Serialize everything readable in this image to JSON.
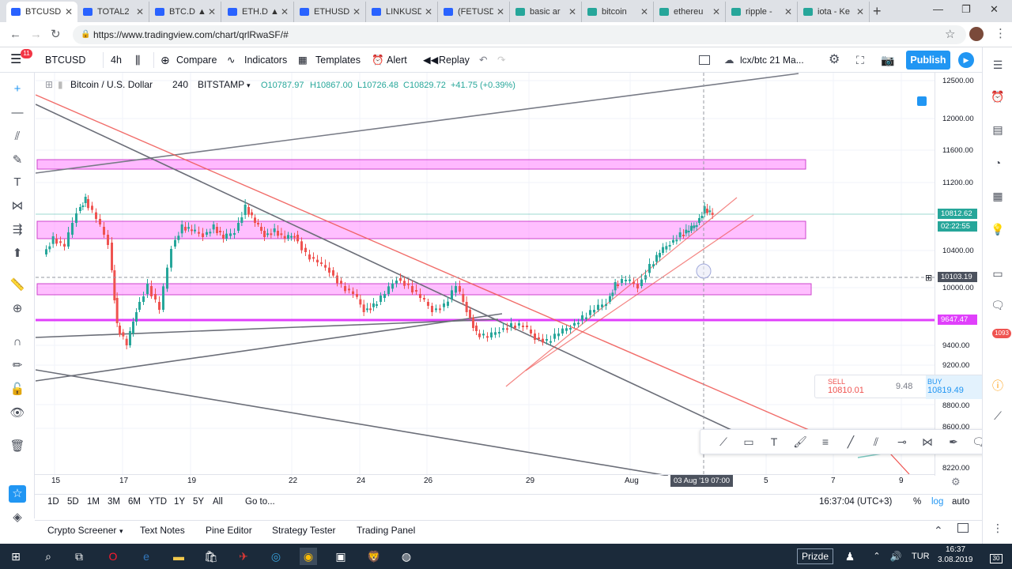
{
  "browser": {
    "tabs": [
      {
        "label": "BTCUSD",
        "color": "#2962ff"
      },
      {
        "label": "TOTAL2",
        "color": "#2962ff"
      },
      {
        "label": "BTC.D ▲",
        "color": "#2962ff"
      },
      {
        "label": "ETH.D ▲",
        "color": "#2962ff"
      },
      {
        "label": "ETHUSD",
        "color": "#2962ff"
      },
      {
        "label": "LINKUSD",
        "color": "#2962ff"
      },
      {
        "label": "(FETUSD",
        "color": "#2962ff"
      },
      {
        "label": "basic ar",
        "color": "#26a69a"
      },
      {
        "label": "bitcoin",
        "color": "#26a69a"
      },
      {
        "label": "ethereu",
        "color": "#26a69a"
      },
      {
        "label": "ripple -",
        "color": "#26a69a"
      },
      {
        "label": "iota - Ke",
        "color": "#26a69a"
      }
    ],
    "url": "https://www.tradingview.com/chart/qrlRwaSF/#"
  },
  "toolbar": {
    "symbol": "BTCUSD",
    "interval": "4h",
    "compare": "Compare",
    "indicators": "Indicators",
    "templates": "Templates",
    "alert": "Alert",
    "replay": "Replay",
    "layout_name": "lcx/btc 21 Ma...",
    "publish": "Publish",
    "notification_count": "11"
  },
  "legend": {
    "title": "Bitcoin / U.S. Dollar",
    "interval": "240",
    "exchange": "BITSTAMP",
    "open": "O10787.97",
    "high": "H10867.00",
    "low": "L10726.48",
    "close": "C10829.72",
    "change": "+41.75 (+0.39%)"
  },
  "price_axis": {
    "ticks": [
      "12500.00",
      "12000.00",
      "11600.00",
      "11200.00",
      "10400.00",
      "10000.00",
      "9400.00",
      "9200.00",
      "8800.00",
      "8600.00",
      "8220.00"
    ],
    "last_price": "10812.62",
    "countdown": "02:22:55",
    "crosshair_price": "10103.19",
    "line_level": "9647.47"
  },
  "time_axis": {
    "ticks": [
      "15",
      "17",
      "19",
      "22",
      "24",
      "26",
      "29",
      "Aug",
      "5",
      "7",
      "9"
    ],
    "crosshair_label": "03 Aug '19   07:00"
  },
  "trade": {
    "sell_label": "SELL",
    "sell_price": "10810.01",
    "spread": "9.48",
    "buy_label": "BUY",
    "buy_price": "10819.49"
  },
  "ranges": [
    "1D",
    "5D",
    "1M",
    "3M",
    "6M",
    "YTD",
    "1Y",
    "5Y",
    "All"
  ],
  "goto": "Go to...",
  "clock": "16:37:04 (UTC+3)",
  "scale_options": {
    "percent": "%",
    "log": "log",
    "auto": "auto"
  },
  "panels": [
    "Crypto Screener",
    "Text Notes",
    "Pine Editor",
    "Strategy Tester",
    "Trading Panel"
  ],
  "taskbar": {
    "prizde": "Prizde",
    "lang": "TUR",
    "time": "16:37",
    "date": "3.08.2019",
    "badge": "30"
  },
  "alert_badge": "1093",
  "colors": {
    "up": "#26a69a",
    "down": "#ef5350",
    "zone": "#ff80ff",
    "accent": "#2196f3"
  }
}
